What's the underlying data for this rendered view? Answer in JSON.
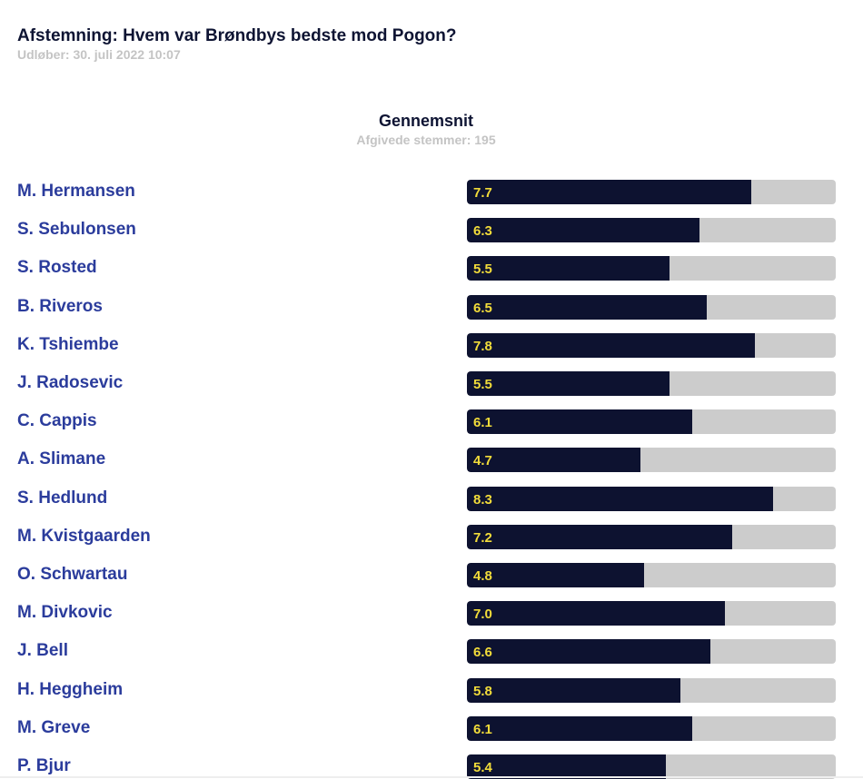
{
  "poll": {
    "title": "Afstemning: Hvem var Brøndbys bedste mod Pogon?",
    "expires": "Udløber: 30. juli 2022 10:07"
  },
  "summary": {
    "title": "Gennemsnit",
    "votes": "Afgivede stemmer: 195"
  },
  "colors": {
    "fill": "#0d1230",
    "track": "#cccccc",
    "value_text": "#f2dc3a",
    "name_text": "#2b3c9c"
  },
  "chart_data": {
    "type": "bar",
    "orientation": "horizontal",
    "title": "Gennemsnit",
    "xlim": [
      0,
      10
    ],
    "categories": [
      "M. Hermansen",
      "S. Sebulonsen",
      "S. Rosted",
      "B. Riveros",
      "K. Tshiembe",
      "J. Radosevic",
      "C. Cappis",
      "A. Slimane",
      "S. Hedlund",
      "M. Kvistgaarden",
      "O. Schwartau",
      "M. Divkovic",
      "J. Bell",
      "H. Heggheim",
      "M. Greve",
      "P. Bjur"
    ],
    "values": [
      7.7,
      6.3,
      5.5,
      6.5,
      7.8,
      5.5,
      6.1,
      4.7,
      8.3,
      7.2,
      4.8,
      7.0,
      6.6,
      5.8,
      6.1,
      5.4
    ],
    "labels": [
      "7.7",
      "6.3",
      "5.5",
      "6.5",
      "7.8",
      "5.5",
      "6.1",
      "4.7",
      "8.3",
      "7.2",
      "4.8",
      "7.0",
      "6.6",
      "5.8",
      "6.1",
      "5.4"
    ]
  }
}
